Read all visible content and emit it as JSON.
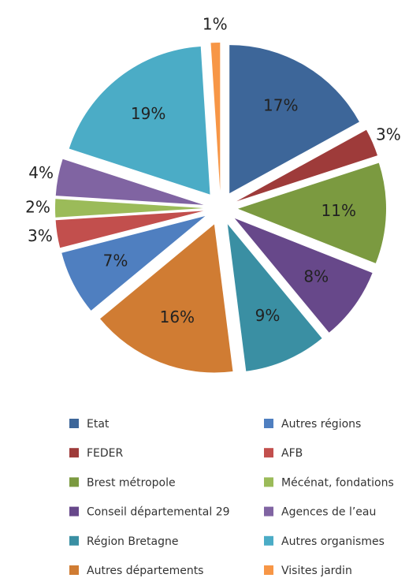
{
  "chart_data": {
    "type": "pie",
    "categories": [
      "Etat",
      "FEDER",
      "Brest métropole",
      "Conseil départemental 29",
      "Région Bretagne",
      "Autres départements",
      "Autres régions",
      "AFB",
      "Mécénat, fondations",
      "Agences de l’eau",
      "Autres organismes",
      "Visites jardin"
    ],
    "values": [
      17,
      3,
      11,
      8,
      9,
      16,
      7,
      3,
      2,
      4,
      19,
      1
    ],
    "value_labels": [
      "17%",
      "3%",
      "11%",
      "8%",
      "9%",
      "16%",
      "7%",
      "3%",
      "2%",
      "4%",
      "19%",
      "1%"
    ],
    "colors": [
      "#3d6699",
      "#9e3b3a",
      "#7b9a40",
      "#67488a",
      "#3a8fa3",
      "#d07c33",
      "#4f7fc0",
      "#c24f4d",
      "#9bbb59",
      "#8064a2",
      "#4bacc6",
      "#f79646"
    ],
    "legend": "bottom"
  }
}
